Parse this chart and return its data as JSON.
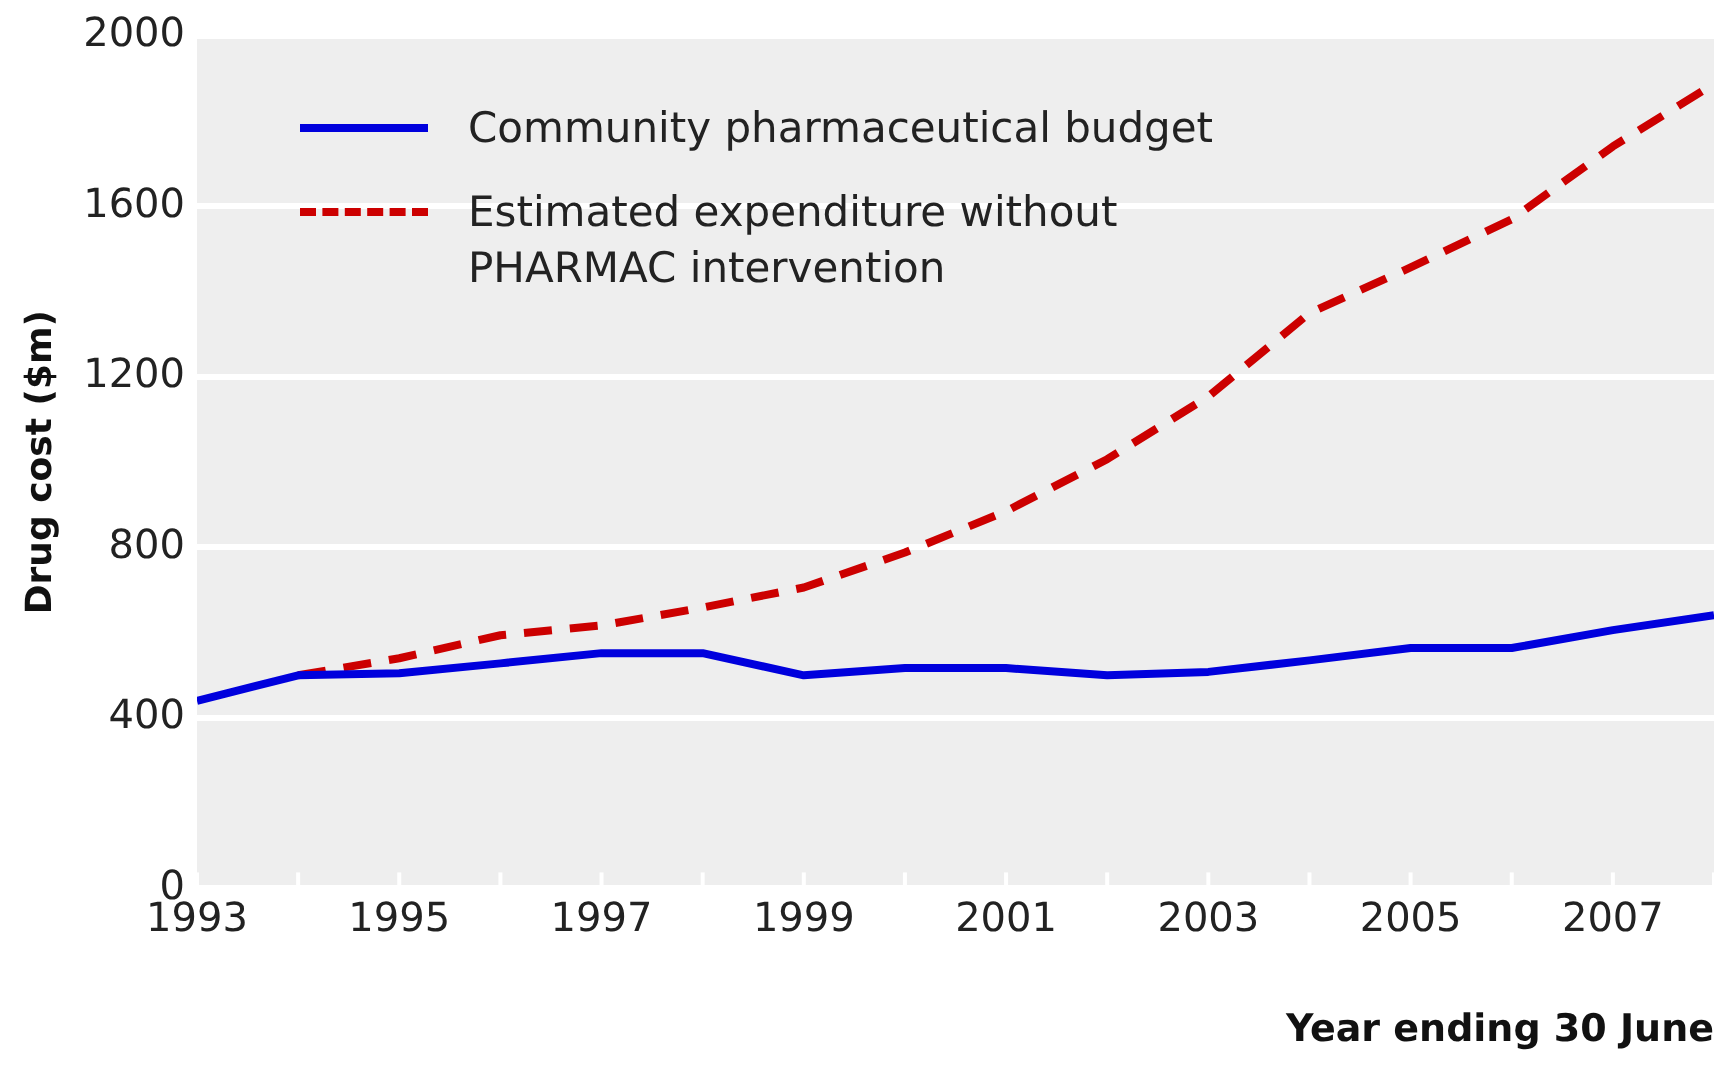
{
  "chart_data": {
    "type": "line",
    "xlabel": "Year ending 30 June",
    "ylabel": "Drug cost ($m)",
    "x": [
      1993,
      1994,
      1995,
      1996,
      1997,
      1998,
      1999,
      2000,
      2001,
      2002,
      2003,
      2004,
      2005,
      2006,
      2007,
      2008
    ],
    "series": [
      {
        "name": "Community pharmaceutical budget",
        "color": "#0000dd",
        "line_style": "solid",
        "values": [
          440,
          500,
          505,
          528,
          552,
          552,
          500,
          517,
          517,
          500,
          508,
          535,
          564,
          564,
          606,
          641
        ]
      },
      {
        "name": "Estimated expenditure without PHARMAC intervention",
        "color": "#cc0000",
        "line_style": "dashed",
        "values": [
          null,
          500,
          540,
          594,
          617,
          659,
          706,
          788,
          885,
          1007,
          1154,
          1350,
          1457,
          1570,
          1741,
          1888
        ]
      }
    ],
    "xlim": [
      1993,
      2008
    ],
    "xticks": [
      1993,
      {
        "value": 1994,
        "label": null
      },
      1995,
      {
        "value": 1996,
        "label": null
      },
      1997,
      {
        "value": 1998,
        "label": null
      },
      1999,
      {
        "value": 2000,
        "label": null
      },
      2001,
      {
        "value": 2002,
        "label": null
      },
      2003,
      {
        "value": 2004,
        "label": null
      },
      2005,
      {
        "value": 2006,
        "label": null
      },
      2007,
      {
        "value": 2008,
        "label": null
      }
    ],
    "ylim": [
      0,
      2000
    ],
    "yticks": [
      0,
      400,
      800,
      1200,
      1600,
      2000
    ],
    "grid": "y",
    "legend": "top left",
    "marker": "none"
  }
}
